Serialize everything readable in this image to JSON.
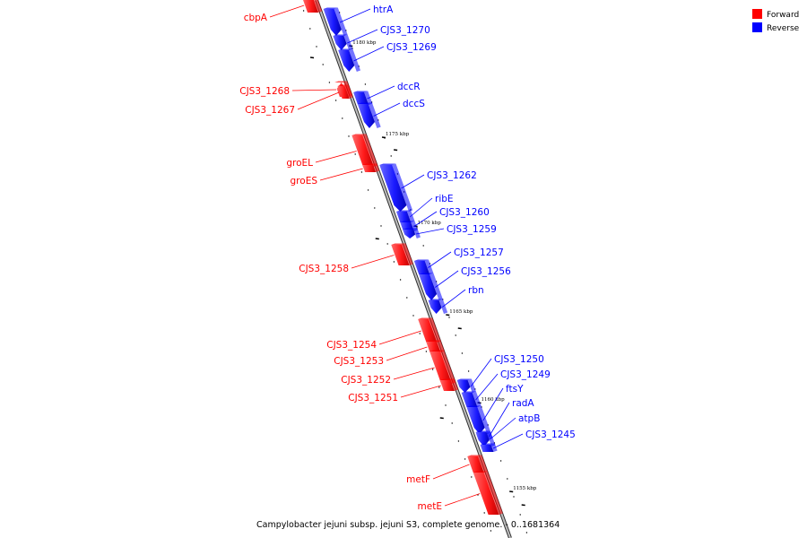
{
  "colors": {
    "forward": "#ff0000",
    "reverse": "#0000ff",
    "backbone": "#808080"
  },
  "legend": [
    {
      "label": "Forward",
      "strand": "forward"
    },
    {
      "label": "Reverse",
      "strand": "reverse"
    }
  ],
  "caption": "Campylobacter jejuni subsp. jejuni S3, complete genome. - 0..1681364",
  "kbp_ticks": [
    {
      "label": "1180 kbp",
      "kbp": 1180
    },
    {
      "label": "1175 kbp",
      "kbp": 1175
    },
    {
      "label": "1170 kbp",
      "kbp": 1170
    },
    {
      "label": "1165 kbp",
      "kbp": 1165
    },
    {
      "label": "1160 kbp",
      "kbp": 1160
    },
    {
      "label": "1155 kbp",
      "kbp": 1155
    }
  ],
  "genes": {
    "forward": [
      {
        "name": "cbpA"
      },
      {
        "name": "CJS3_1268"
      },
      {
        "name": "CJS3_1267"
      },
      {
        "name": "groEL"
      },
      {
        "name": "groES"
      },
      {
        "name": "CJS3_1258"
      },
      {
        "name": "CJS3_1254"
      },
      {
        "name": "CJS3_1253"
      },
      {
        "name": "CJS3_1252"
      },
      {
        "name": "CJS3_1251"
      },
      {
        "name": "metF"
      },
      {
        "name": "metE"
      }
    ],
    "reverse": [
      {
        "name": "htrA"
      },
      {
        "name": "CJS3_1270"
      },
      {
        "name": "CJS3_1269"
      },
      {
        "name": "dccR"
      },
      {
        "name": "dccS"
      },
      {
        "name": "CJS3_1262"
      },
      {
        "name": "ribE"
      },
      {
        "name": "CJS3_1260"
      },
      {
        "name": "CJS3_1259"
      },
      {
        "name": "CJS3_1257"
      },
      {
        "name": "CJS3_1256"
      },
      {
        "name": "rbn"
      },
      {
        "name": "CJS3_1250"
      },
      {
        "name": "CJS3_1249"
      },
      {
        "name": "ftsY"
      },
      {
        "name": "radA"
      },
      {
        "name": "atpB"
      },
      {
        "name": "CJS3_1245"
      }
    ]
  }
}
